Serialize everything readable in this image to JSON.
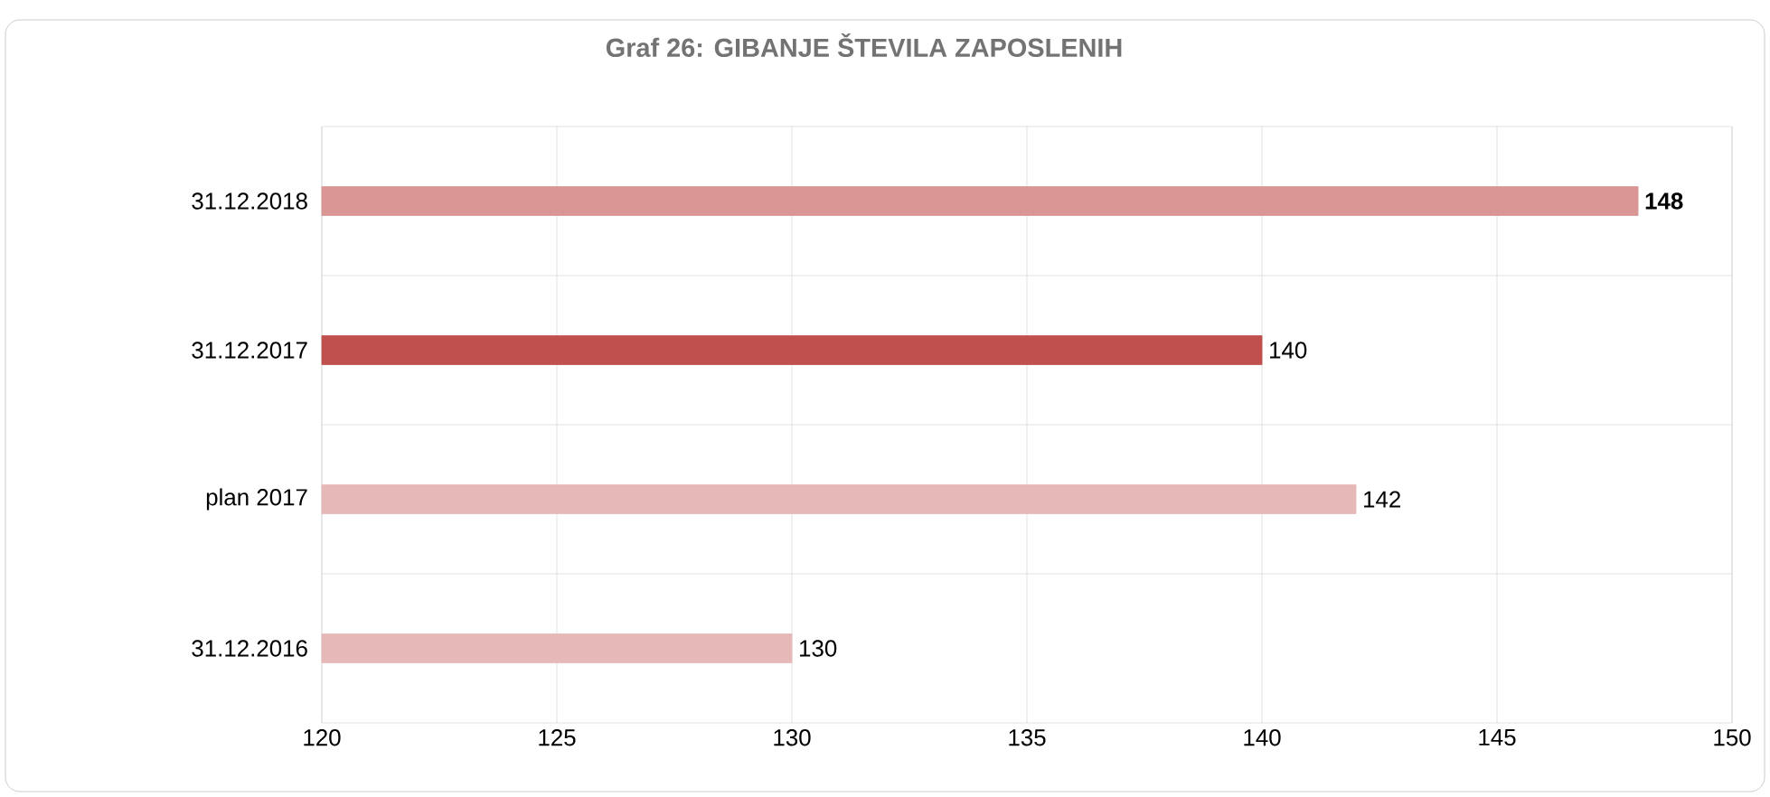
{
  "chart_data": {
    "type": "bar",
    "orientation": "horizontal",
    "title": "Graf 26: GIBANJE ŠTEVILA ZAPOSLENIH",
    "categories": [
      "31.12.2018",
      "31.12.2017",
      "plan 2017",
      "31.12.2016"
    ],
    "values": [
      148,
      140,
      142,
      130
    ],
    "colors": [
      "#d99694",
      "#c0504d",
      "#e6b9b8",
      "#e6b9b8"
    ],
    "value_labels": [
      "**148**",
      "140",
      "142",
      "130"
    ],
    "xlim": [
      120,
      150
    ],
    "xticks": [
      120,
      125,
      130,
      135,
      140,
      145,
      150
    ],
    "grid": true
  }
}
